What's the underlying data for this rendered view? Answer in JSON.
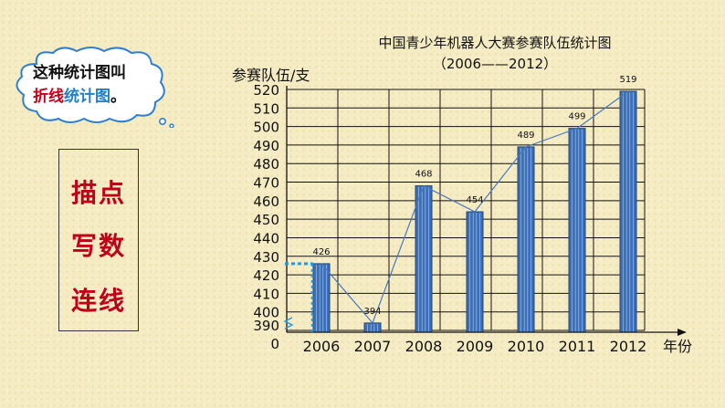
{
  "bubble": {
    "line1": "这种统计图叫",
    "line2_red": "折线",
    "line2_blue": "统计图",
    "line2_end": "。"
  },
  "steps": [
    "描点",
    "写数",
    "连线"
  ],
  "chart_data": {
    "type": "bar",
    "title": "中国青少年机器人大赛参赛队伍统计图",
    "subtitle": "（2006——2012）",
    "ylabel": "参赛队伍/支",
    "xlabel": "年份",
    "categories": [
      "2006",
      "2007",
      "2008",
      "2009",
      "2010",
      "2011",
      "2012"
    ],
    "values": [
      426,
      394,
      468,
      454,
      489,
      499,
      519
    ],
    "data_labels": [
      "426",
      "394",
      "468",
      "454",
      "489",
      "499",
      "519"
    ],
    "y_ticks": [
      "0",
      "390",
      "400",
      "410",
      "420",
      "430",
      "440",
      "450",
      "460",
      "470",
      "480",
      "490",
      "500",
      "510",
      "520"
    ],
    "ylim": [
      390,
      520
    ],
    "axis_break": true,
    "grid": true,
    "overlay": "line",
    "colors": {
      "bar": "#3d6fb8",
      "line": "#4a78bd",
      "grid": "#111111",
      "guide": "#1e9be8"
    }
  }
}
